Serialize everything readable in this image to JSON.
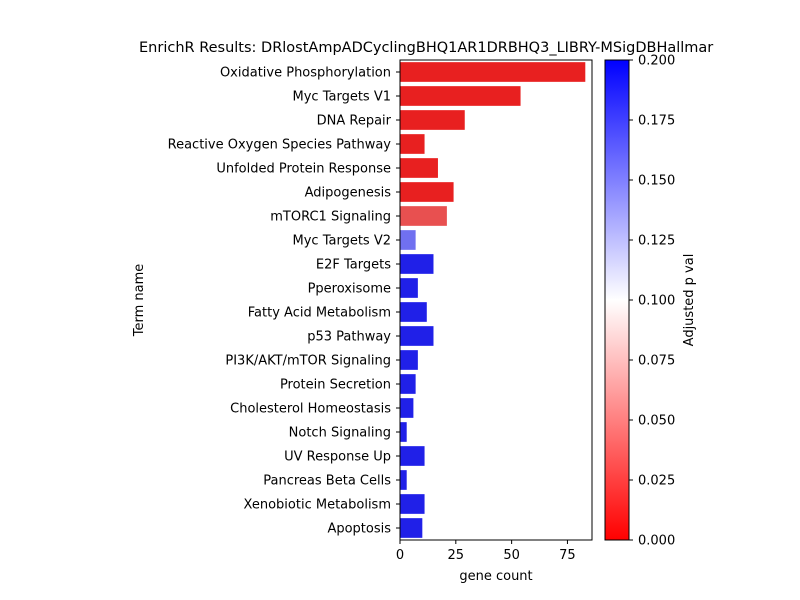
{
  "chart_data": {
    "type": "bar",
    "orientation": "horizontal",
    "title": "EnrichR Results: DRlostAmpADCyclingBHQ1AR1DRBHQ3_LIBRY-MSigDBHallmar",
    "xlabel": "gene count",
    "ylabel": "Term name",
    "xlim": [
      0,
      86
    ],
    "xticks": [
      0,
      25,
      50,
      75
    ],
    "categories": [
      "Oxidative Phosphorylation",
      "Myc Targets V1",
      "DNA Repair",
      "Reactive Oxygen Species Pathway",
      "Unfolded Protein Response",
      "Adipogenesis",
      "mTORC1 Signaling",
      "Myc Targets V2",
      "E2F Targets",
      "Pperoxisome",
      "Fatty Acid Metabolism",
      "p53 Pathway",
      "PI3K/AKT/mTOR  Signaling",
      "Protein Secretion",
      "Cholesterol Homeostasis",
      "Notch Signaling",
      "UV Response Up",
      "Pancreas Beta Cells",
      "Xenobiotic Metabolism",
      "Apoptosis"
    ],
    "values": [
      83,
      54,
      29,
      11,
      17,
      24,
      21,
      7,
      15,
      8,
      12,
      15,
      8,
      7,
      6,
      3,
      11,
      3,
      11,
      10
    ],
    "bar_colors": [
      "#e82020",
      "#e82020",
      "#e82020",
      "#e82020",
      "#e82020",
      "#e82020",
      "#e85050",
      "#7070f0",
      "#2020e8",
      "#2020e8",
      "#2020e8",
      "#2020e8",
      "#2020e8",
      "#2020e8",
      "#2020e8",
      "#2020e8",
      "#2020e8",
      "#2020e8",
      "#2020e8",
      "#2020e8"
    ],
    "colorbar": {
      "label": "Adjusted p val",
      "range": [
        0,
        0.2
      ],
      "ticks": [
        "0.000",
        "0.025",
        "0.050",
        "0.075",
        "0.100",
        "0.125",
        "0.150",
        "0.175",
        "0.200"
      ],
      "colors": [
        "#ff0000",
        "#ffffff",
        "#0000ff"
      ]
    }
  }
}
